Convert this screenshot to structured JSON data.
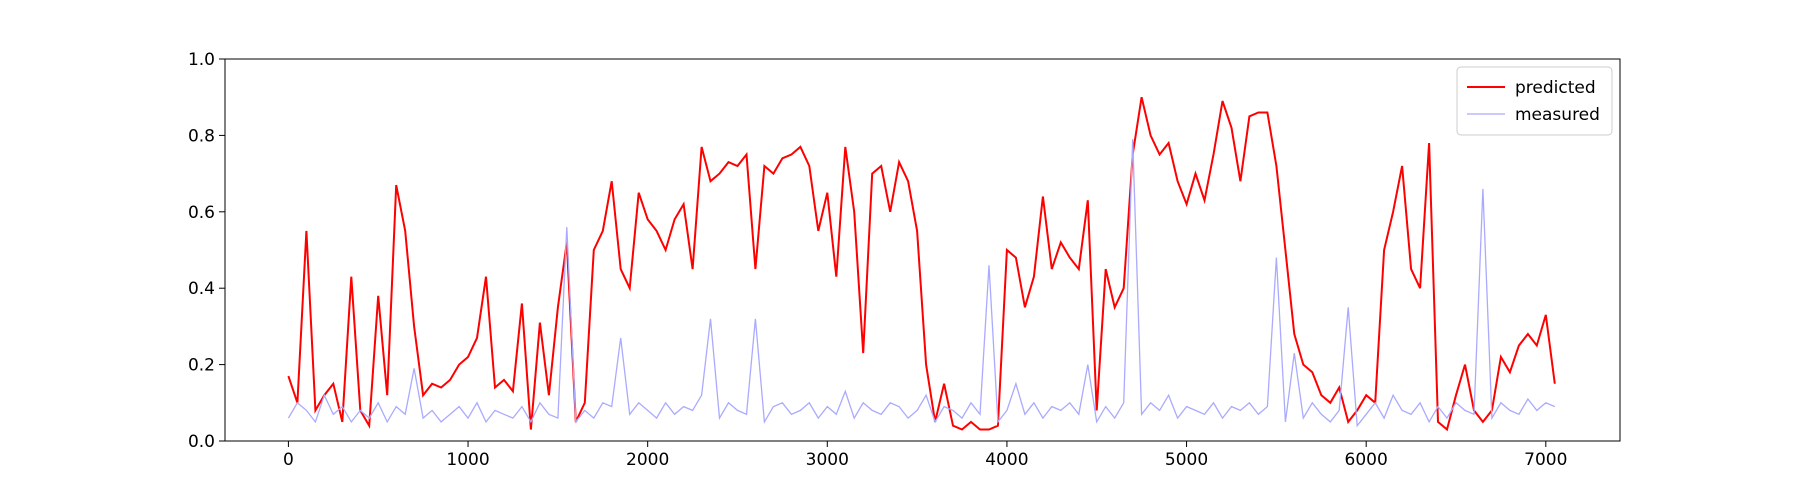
{
  "chart_data": {
    "type": "line",
    "x": [
      0,
      50,
      100,
      150,
      200,
      250,
      300,
      350,
      400,
      450,
      500,
      550,
      600,
      650,
      700,
      750,
      800,
      850,
      900,
      950,
      1000,
      1050,
      1100,
      1150,
      1200,
      1250,
      1300,
      1350,
      1400,
      1450,
      1500,
      1550,
      1600,
      1650,
      1700,
      1750,
      1800,
      1850,
      1900,
      1950,
      2000,
      2050,
      2100,
      2150,
      2200,
      2250,
      2300,
      2350,
      2400,
      2450,
      2500,
      2550,
      2600,
      2650,
      2700,
      2750,
      2800,
      2850,
      2900,
      2950,
      3000,
      3050,
      3100,
      3150,
      3200,
      3250,
      3300,
      3350,
      3400,
      3450,
      3500,
      3550,
      3600,
      3650,
      3700,
      3750,
      3800,
      3850,
      3900,
      3950,
      4000,
      4050,
      4100,
      4150,
      4200,
      4250,
      4300,
      4350,
      4400,
      4450,
      4500,
      4550,
      4600,
      4650,
      4700,
      4750,
      4800,
      4850,
      4900,
      4950,
      5000,
      5050,
      5100,
      5150,
      5200,
      5250,
      5300,
      5350,
      5400,
      5450,
      5500,
      5550,
      5600,
      5650,
      5700,
      5750,
      5800,
      5850,
      5900,
      5950,
      6000,
      6050,
      6100,
      6150,
      6200,
      6250,
      6300,
      6350,
      6400,
      6450,
      6500,
      6550,
      6600,
      6650,
      6700,
      6750,
      6800,
      6850,
      6900,
      6950,
      7000,
      7050
    ],
    "series": [
      {
        "name": "predicted",
        "color": "#ff0000",
        "values": [
          0.17,
          0.1,
          0.55,
          0.08,
          0.12,
          0.15,
          0.05,
          0.43,
          0.08,
          0.04,
          0.38,
          0.12,
          0.67,
          0.55,
          0.3,
          0.12,
          0.15,
          0.14,
          0.16,
          0.2,
          0.22,
          0.27,
          0.43,
          0.14,
          0.16,
          0.13,
          0.36,
          0.03,
          0.31,
          0.12,
          0.35,
          0.52,
          0.05,
          0.1,
          0.5,
          0.55,
          0.68,
          0.45,
          0.4,
          0.65,
          0.58,
          0.55,
          0.5,
          0.58,
          0.62,
          0.45,
          0.77,
          0.68,
          0.7,
          0.73,
          0.72,
          0.75,
          0.45,
          0.72,
          0.7,
          0.74,
          0.75,
          0.77,
          0.72,
          0.55,
          0.65,
          0.43,
          0.77,
          0.6,
          0.23,
          0.7,
          0.72,
          0.6,
          0.73,
          0.68,
          0.55,
          0.2,
          0.05,
          0.15,
          0.04,
          0.03,
          0.05,
          0.03,
          0.03,
          0.04,
          0.5,
          0.48,
          0.35,
          0.43,
          0.64,
          0.45,
          0.52,
          0.48,
          0.45,
          0.63,
          0.08,
          0.45,
          0.35,
          0.4,
          0.75,
          0.9,
          0.8,
          0.75,
          0.78,
          0.68,
          0.62,
          0.7,
          0.63,
          0.75,
          0.89,
          0.82,
          0.68,
          0.85,
          0.86,
          0.86,
          0.72,
          0.5,
          0.28,
          0.2,
          0.18,
          0.12,
          0.1,
          0.14,
          0.05,
          0.08,
          0.12,
          0.1,
          0.5,
          0.6,
          0.72,
          0.45,
          0.4,
          0.78,
          0.05,
          0.03,
          0.12,
          0.2,
          0.08,
          0.05,
          0.08,
          0.22,
          0.18,
          0.25,
          0.28,
          0.25,
          0.33,
          0.15
        ]
      },
      {
        "name": "measured",
        "color": "#aaaaff",
        "values": [
          0.06,
          0.1,
          0.08,
          0.05,
          0.12,
          0.07,
          0.09,
          0.05,
          0.08,
          0.06,
          0.1,
          0.05,
          0.09,
          0.07,
          0.19,
          0.06,
          0.08,
          0.05,
          0.07,
          0.09,
          0.06,
          0.1,
          0.05,
          0.08,
          0.07,
          0.06,
          0.09,
          0.05,
          0.1,
          0.07,
          0.06,
          0.56,
          0.05,
          0.08,
          0.06,
          0.1,
          0.09,
          0.27,
          0.07,
          0.1,
          0.08,
          0.06,
          0.1,
          0.07,
          0.09,
          0.08,
          0.12,
          0.32,
          0.06,
          0.1,
          0.08,
          0.07,
          0.32,
          0.05,
          0.09,
          0.1,
          0.07,
          0.08,
          0.1,
          0.06,
          0.09,
          0.07,
          0.13,
          0.06,
          0.1,
          0.08,
          0.07,
          0.1,
          0.09,
          0.06,
          0.08,
          0.12,
          0.05,
          0.09,
          0.08,
          0.06,
          0.1,
          0.07,
          0.46,
          0.05,
          0.08,
          0.15,
          0.07,
          0.1,
          0.06,
          0.09,
          0.08,
          0.1,
          0.07,
          0.2,
          0.05,
          0.09,
          0.06,
          0.1,
          0.79,
          0.07,
          0.1,
          0.08,
          0.12,
          0.06,
          0.09,
          0.08,
          0.07,
          0.1,
          0.06,
          0.09,
          0.08,
          0.1,
          0.07,
          0.09,
          0.48,
          0.05,
          0.23,
          0.06,
          0.1,
          0.07,
          0.05,
          0.08,
          0.35,
          0.04,
          0.07,
          0.1,
          0.06,
          0.12,
          0.08,
          0.07,
          0.1,
          0.05,
          0.09,
          0.06,
          0.1,
          0.08,
          0.07,
          0.66,
          0.06,
          0.1,
          0.08,
          0.07,
          0.11,
          0.08,
          0.1,
          0.09
        ]
      }
    ],
    "xlim": [
      -353,
      7413
    ],
    "ylim": [
      0,
      1
    ],
    "xticks": [
      0,
      1000,
      2000,
      3000,
      4000,
      5000,
      6000,
      7000
    ],
    "yticks": [
      {
        "value": 0,
        "label": "0.0"
      },
      0.2,
      0.4,
      0.6,
      0.8,
      {
        "value": 1,
        "label": "1.0"
      }
    ],
    "legend": "upper right"
  }
}
